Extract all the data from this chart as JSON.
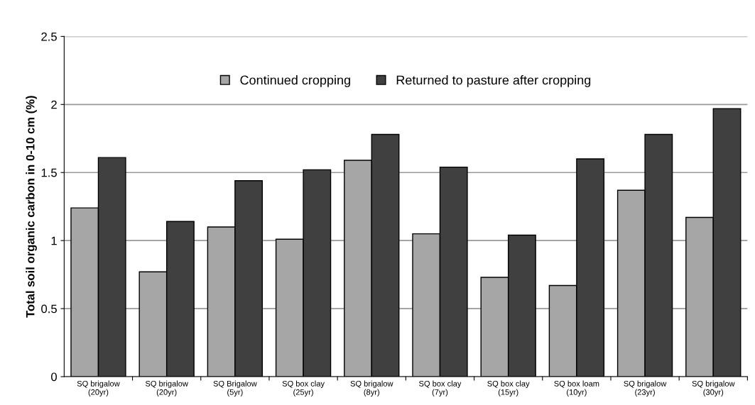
{
  "chart_data": {
    "type": "bar",
    "ylabel": "Total soil organic carbon in 0-10 cm (%)",
    "categories": [
      "SQ brigalow\n(20yr)",
      "SQ brigalow\n(20yr)",
      "SQ Brigalow\n(5yr)",
      "SQ box clay\n(25yr)",
      "SQ brigalow\n(8yr)",
      "SQ box clay\n(7yr)",
      "SQ box clay\n(15yr)",
      "SQ box loam\n(10yr)",
      "SQ brigalow\n(23yr)",
      "SQ brigalow\n(30yr)"
    ],
    "series": [
      {
        "name": "Continued cropping",
        "color": "#a6a6a6",
        "values": [
          1.24,
          0.77,
          1.1,
          1.01,
          1.59,
          1.05,
          0.73,
          0.67,
          1.37,
          1.17
        ]
      },
      {
        "name": "Returned to pasture after cropping",
        "color": "#404040",
        "values": [
          1.61,
          1.14,
          1.44,
          1.52,
          1.78,
          1.54,
          1.04,
          1.6,
          1.78,
          1.97
        ]
      }
    ],
    "ylim": [
      0,
      2.5
    ],
    "yticks": [
      0,
      0.5,
      1,
      1.5,
      2,
      2.5
    ],
    "grid": "y",
    "legend": "top"
  }
}
